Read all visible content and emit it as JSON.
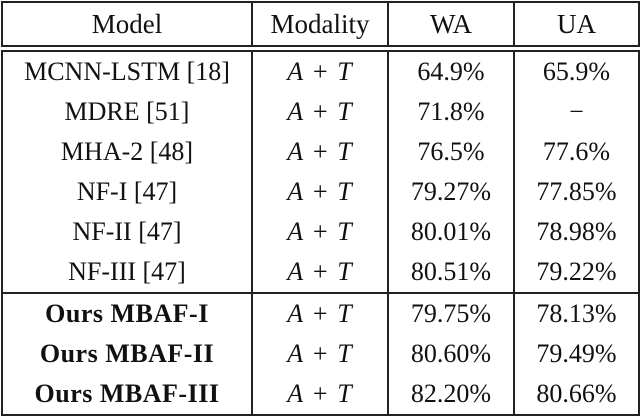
{
  "header": {
    "model": "Model",
    "modality": "Modality",
    "wa": "WA",
    "ua": "UA"
  },
  "rows": [
    {
      "model": "MCNN-LSTM [18]",
      "modality": "A + T",
      "wa": "64.9%",
      "ua": "65.9%"
    },
    {
      "model": "MDRE [51]",
      "modality": "A + T",
      "wa": "71.8%",
      "ua": "−"
    },
    {
      "model": "MHA-2 [48]",
      "modality": "A + T",
      "wa": "76.5%",
      "ua": "77.6%"
    },
    {
      "model": "NF-I [47]",
      "modality": "A + T",
      "wa": "79.27%",
      "ua": "77.85%"
    },
    {
      "model": "NF-II [47]",
      "modality": "A + T",
      "wa": "80.01%",
      "ua": "78.98%"
    },
    {
      "model": "NF-III [47]",
      "modality": "A + T",
      "wa": "80.51%",
      "ua": "79.22%"
    },
    {
      "model": "Ours MBAF-I",
      "modality": "A + T",
      "wa": "79.75%",
      "ua": "78.13%"
    },
    {
      "model": "Ours MBAF-II",
      "modality": "A + T",
      "wa": "80.60%",
      "ua": "79.49%"
    },
    {
      "model": "Ours MBAF-III",
      "modality": "A + T",
      "wa": "82.20%",
      "ua": "80.66%"
    }
  ],
  "colors": {
    "text": "#111111",
    "border": "#222222",
    "background": "#ffffff"
  }
}
